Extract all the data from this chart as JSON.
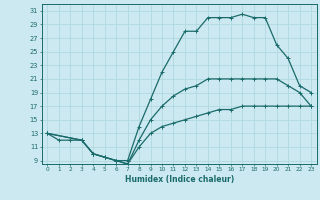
{
  "xlabel": "Humidex (Indice chaleur)",
  "bg_color": "#cce8f0",
  "grid_color": "#b0d8e0",
  "line_color": "#1a6b6b",
  "xlim": [
    -0.5,
    23.5
  ],
  "ylim": [
    8.5,
    32
  ],
  "yticks": [
    9,
    11,
    13,
    15,
    17,
    19,
    21,
    23,
    25,
    27,
    29,
    31
  ],
  "xticks": [
    0,
    1,
    2,
    3,
    4,
    5,
    6,
    7,
    8,
    9,
    10,
    11,
    12,
    13,
    14,
    15,
    16,
    17,
    18,
    19,
    20,
    21,
    22,
    23
  ],
  "curve1_x": [
    0,
    1,
    2,
    3,
    4,
    5,
    6,
    7,
    8,
    9,
    10,
    11,
    12,
    13,
    14,
    15,
    16,
    17,
    18,
    19,
    20,
    21,
    22,
    23
  ],
  "curve1_y": [
    13,
    12,
    12,
    12,
    10,
    9.5,
    9,
    9,
    14,
    18,
    22,
    25,
    28,
    28,
    30,
    30,
    30,
    30.5,
    30,
    30,
    26,
    24,
    20,
    19
  ],
  "curve2_x": [
    0,
    3,
    4,
    5,
    6,
    7,
    8,
    9,
    10,
    11,
    12,
    13,
    14,
    15,
    16,
    17,
    18,
    19,
    20,
    21,
    22,
    23
  ],
  "curve2_y": [
    13,
    12,
    10,
    9.5,
    9,
    8.5,
    12,
    15,
    17,
    18.5,
    19.5,
    20,
    21,
    21,
    21,
    21,
    21,
    21,
    21,
    20,
    19,
    17
  ],
  "curve3_x": [
    0,
    3,
    4,
    5,
    6,
    7,
    8,
    9,
    10,
    11,
    12,
    13,
    14,
    15,
    16,
    17,
    18,
    19,
    20,
    21,
    22,
    23
  ],
  "curve3_y": [
    13,
    12,
    10,
    9.5,
    9,
    8.5,
    11,
    13,
    14,
    14.5,
    15,
    15.5,
    16,
    16.5,
    16.5,
    17,
    17,
    17,
    17,
    17,
    17,
    17
  ],
  "marker": "+",
  "markersize": 3,
  "linewidth": 0.9
}
